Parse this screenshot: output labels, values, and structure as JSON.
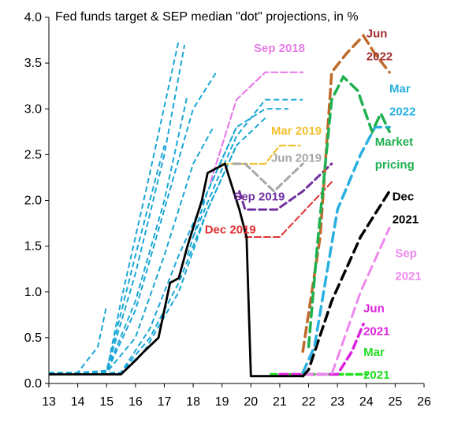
{
  "chart_data": {
    "type": "line",
    "title": "Fed funds target & SEP median \"dot\" projections, in %",
    "xlim": [
      13,
      26
    ],
    "ylim": [
      0,
      4
    ],
    "x_ticks": [
      "13",
      "14",
      "15",
      "16",
      "17",
      "18",
      "19",
      "20",
      "21",
      "22",
      "23",
      "24",
      "25",
      "26"
    ],
    "y_ticks": [
      "0.0",
      "0.5",
      "1.0",
      "1.5",
      "2.0",
      "2.5",
      "3.0",
      "3.5",
      "4.0"
    ],
    "grid": false,
    "colors": {
      "old_dots": "#1aa6d6",
      "actual": "#000000",
      "sep2018": "#e67ee6",
      "mar2019": "#f2c12e",
      "jun2019": "#a6a6a6",
      "sep2019": "#7030a0",
      "dec2019": "#e03030",
      "mar2021": "#22dd22",
      "jun2021": "#dd22dd",
      "sep2021": "#ee88ee",
      "dec2021": "#000000",
      "mar2022": "#2ab0e0",
      "jun2022": "#c0692a",
      "market": "#1fb050"
    },
    "actual_rate": {
      "x": [
        13,
        15.0,
        15.5,
        16.0,
        16.3,
        16.8,
        17.2,
        17.5,
        17.8,
        18.3,
        18.5,
        19.1,
        19.2,
        19.6,
        19.85,
        20.0,
        21.8,
        22.0
      ],
      "y": [
        0.1,
        0.1,
        0.1,
        0.25,
        0.35,
        0.5,
        1.1,
        1.15,
        1.5,
        2.0,
        2.3,
        2.4,
        2.3,
        1.9,
        1.6,
        0.08,
        0.08,
        0.15
      ]
    },
    "old_projections": [
      {
        "x": [
          13.0,
          14.0,
          15.0,
          15.5,
          16.5,
          17.5
        ],
        "y": [
          0.12,
          0.12,
          0.12,
          0.9,
          2.3,
          3.75
        ]
      },
      {
        "x": [
          13.0,
          14.0,
          15.0,
          16.0,
          17.0,
          17.7
        ],
        "y": [
          0.12,
          0.12,
          0.13,
          1.2,
          2.5,
          3.7
        ]
      },
      {
        "x": [
          13.0,
          14.0,
          15.0,
          16.0,
          17.0
        ],
        "y": [
          0.1,
          0.12,
          0.14,
          1.4,
          2.6
        ]
      },
      {
        "x": [
          13.0,
          14.0,
          14.7,
          15.0
        ],
        "y": [
          0.1,
          0.12,
          0.4,
          0.85
        ]
      },
      {
        "x": [
          13.0,
          14.5,
          15.0,
          16.0,
          17.0,
          17.8
        ],
        "y": [
          0.1,
          0.12,
          0.13,
          0.9,
          2.0,
          3.15
        ]
      },
      {
        "x": [
          13.0,
          15.0,
          16.0,
          17.0,
          18.0,
          18.8
        ],
        "y": [
          0.1,
          0.12,
          0.8,
          1.9,
          3.0,
          3.4
        ]
      },
      {
        "x": [
          13.0,
          15.0,
          16.0,
          17.0,
          18.0,
          18.7
        ],
        "y": [
          0.1,
          0.12,
          0.5,
          1.4,
          2.4,
          2.8
        ]
      },
      {
        "x": [
          13.0,
          15.5,
          16.5,
          17.5,
          18.5,
          19.5
        ],
        "y": [
          0.1,
          0.12,
          0.6,
          1.4,
          2.1,
          2.8
        ]
      },
      {
        "x": [
          13.0,
          15.5,
          16.5,
          17.5,
          18.5,
          19.5
        ],
        "y": [
          0.1,
          0.12,
          0.5,
          1.1,
          1.9,
          2.6
        ]
      },
      {
        "x": [
          13.0,
          15.5,
          16.3,
          17.5,
          18.5,
          19.5,
          20.5
        ],
        "y": [
          0.1,
          0.12,
          0.35,
          1.0,
          1.9,
          2.6,
          2.9
        ]
      },
      {
        "x": [
          17.8,
          18.5,
          19.5,
          20.5,
          21.3
        ],
        "y": [
          1.4,
          2.1,
          2.8,
          3.0,
          3.0
        ]
      },
      {
        "x": [
          18.0,
          18.8,
          19.5,
          20.5,
          21.8
        ],
        "y": [
          1.6,
          2.2,
          2.7,
          3.1,
          3.1
        ]
      }
    ],
    "series": [
      {
        "name": "Sep 2018",
        "x": [
          18.6,
          19.5,
          20.5,
          21.8
        ],
        "y": [
          2.2,
          3.1,
          3.4,
          3.4
        ]
      },
      {
        "name": "Mar 2019",
        "x": [
          19.0,
          20.5,
          21.0,
          21.7
        ],
        "y": [
          2.4,
          2.4,
          2.6,
          2.6
        ]
      },
      {
        "name": "Jun 2019",
        "x": [
          19.4,
          19.8,
          20.8,
          21.8
        ],
        "y": [
          2.4,
          2.4,
          2.1,
          2.4
        ]
      },
      {
        "name": "Sep 2019",
        "x": [
          19.6,
          19.8,
          20.9,
          21.8,
          22.8
        ],
        "y": [
          2.1,
          1.9,
          1.9,
          2.1,
          2.4
        ]
      },
      {
        "name": "Dec 2019",
        "x": [
          19.8,
          21.0,
          22.8
        ],
        "y": [
          1.6,
          1.6,
          2.2
        ]
      },
      {
        "name": "Mar 2021",
        "x": [
          20.7,
          21.7,
          22.8,
          24.0
        ],
        "y": [
          0.1,
          0.1,
          0.1,
          0.1
        ]
      },
      {
        "name": "Jun 2021",
        "x": [
          21.0,
          22.0,
          23.0,
          23.5,
          23.9
        ],
        "y": [
          0.1,
          0.1,
          0.1,
          0.35,
          0.65
        ]
      },
      {
        "name": "Sep 2021",
        "x": [
          21.8,
          22.8,
          23.8,
          24.8
        ],
        "y": [
          0.1,
          0.1,
          1.0,
          1.7
        ]
      },
      {
        "name": "Dec 2021",
        "x": [
          21.8,
          22.0,
          22.8,
          23.8,
          24.8
        ],
        "y": [
          0.08,
          0.15,
          0.9,
          1.6,
          2.1
        ]
      },
      {
        "name": "Mar 2022",
        "x": [
          21.8,
          22.2,
          23.0,
          23.8,
          24.3,
          24.8
        ],
        "y": [
          0.12,
          0.4,
          1.9,
          2.5,
          2.8,
          2.8
        ]
      },
      {
        "name": "Jun 2022",
        "x": [
          21.8,
          22.4,
          22.8,
          23.3,
          23.9,
          24.3,
          24.8
        ],
        "y": [
          0.35,
          1.6,
          3.4,
          3.6,
          3.8,
          3.6,
          3.4
        ]
      },
      {
        "name": "Market pricing",
        "x": [
          22.0,
          22.3,
          22.8,
          23.2,
          23.7,
          24.2,
          24.5,
          24.8
        ],
        "y": [
          0.4,
          1.5,
          3.1,
          3.35,
          3.2,
          2.75,
          2.95,
          2.75
        ]
      }
    ],
    "annotations": [
      {
        "text": "Sep 2018",
        "x": 20.1,
        "y": 3.62,
        "color": "#e67ee6",
        "series": "Sep 2018"
      },
      {
        "text": "Mar 2019",
        "x": 20.7,
        "y": 2.72,
        "color": "#f2c12e",
        "series": "Mar 2019"
      },
      {
        "text": "Jun 2019",
        "x": 20.7,
        "y": 2.42,
        "color": "#a6a6a6",
        "series": "Jun 2019"
      },
      {
        "text": "Sep 2019",
        "x": 19.4,
        "y": 2.0,
        "color": "#7030a0",
        "series": "Sep 2019"
      },
      {
        "text": "Dec 2019",
        "x": 18.4,
        "y": 1.64,
        "color": "#e03030",
        "series": "Dec 2019"
      },
      {
        "text": "Jun",
        "x": 24.0,
        "y": 3.78,
        "color": "#a03030",
        "series": "Jun 2022"
      },
      {
        "text": "2022",
        "x": 24.0,
        "y": 3.53,
        "color": "#a03030",
        "series": "Jun 2022"
      },
      {
        "text": "Mar",
        "x": 24.8,
        "y": 3.18,
        "color": "#2ab0e0",
        "series": "Mar 2022"
      },
      {
        "text": "2022",
        "x": 24.8,
        "y": 2.93,
        "color": "#2ab0e0",
        "series": "Mar 2022"
      },
      {
        "text": "Market",
        "x": 24.3,
        "y": 2.6,
        "color": "#1fb050",
        "series": "Market pricing"
      },
      {
        "text": "pricing",
        "x": 24.3,
        "y": 2.35,
        "color": "#1fb050",
        "series": "Market pricing"
      },
      {
        "text": "Dec",
        "x": 24.9,
        "y": 2.0,
        "color": "#000000",
        "series": "Dec 2021"
      },
      {
        "text": "2021",
        "x": 24.9,
        "y": 1.75,
        "color": "#000000",
        "series": "Dec 2021"
      },
      {
        "text": "Sep",
        "x": 25.0,
        "y": 1.38,
        "color": "#ee88ee",
        "series": "Sep 2021"
      },
      {
        "text": "2021",
        "x": 25.0,
        "y": 1.13,
        "color": "#ee88ee",
        "series": "Sep 2021"
      },
      {
        "text": "Jun",
        "x": 23.9,
        "y": 0.78,
        "color": "#dd22dd",
        "series": "Jun 2021"
      },
      {
        "text": "2021",
        "x": 23.9,
        "y": 0.53,
        "color": "#dd22dd",
        "series": "Jun 2021"
      },
      {
        "text": "Mar",
        "x": 23.9,
        "y": 0.3,
        "color": "#22dd22",
        "series": "Mar 2021"
      },
      {
        "text": "2021",
        "x": 23.9,
        "y": 0.05,
        "color": "#22dd22",
        "series": "Mar 2021"
      }
    ]
  }
}
